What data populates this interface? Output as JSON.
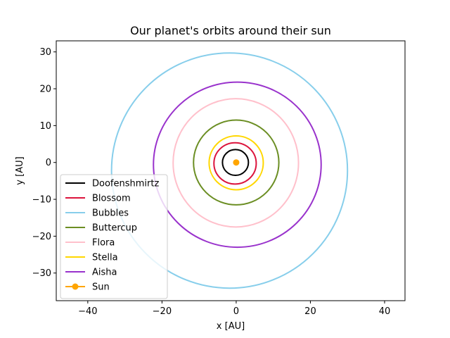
{
  "chart_data": {
    "type": "line",
    "title": "Our planet's orbits around their sun",
    "xlabel": "x [AU]",
    "ylabel": "y [AU]",
    "xlim": [
      -48.5,
      45.5
    ],
    "ylim": [
      -37.5,
      33.0
    ],
    "xticks": [
      -40,
      -20,
      0,
      20,
      40
    ],
    "xtick_labels": [
      "−40",
      "−20",
      "0",
      "20",
      "40"
    ],
    "yticks": [
      -30,
      -20,
      -10,
      0,
      10,
      20,
      30
    ],
    "ytick_labels": [
      "−30",
      "−20",
      "−10",
      "0",
      "10",
      "20",
      "30"
    ],
    "grid": false,
    "legend_placement": "lower-left",
    "series": [
      {
        "name": "Doofenshmirtz",
        "color": "#000000",
        "a": 3.5,
        "b": 3.5,
        "center": [
          -0.2,
          0.0
        ]
      },
      {
        "name": "Blossom",
        "color": "#dc143c",
        "a": 5.7,
        "b": 5.6,
        "center": [
          -0.3,
          -0.25
        ]
      },
      {
        "name": "Bubbles",
        "color": "#87ceeb",
        "a": 31.8,
        "b": 31.9,
        "center": [
          -1.8,
          -2.2
        ]
      },
      {
        "name": "Buttercup",
        "color": "#6b8e23",
        "a": 11.5,
        "b": 11.5,
        "center": [
          0.0,
          0.0
        ]
      },
      {
        "name": "Flora",
        "color": "#ffc0cb",
        "a": 16.9,
        "b": 17.4,
        "center": [
          -0.1,
          -0.1
        ]
      },
      {
        "name": "Stella",
        "color": "#ffd700",
        "a": 7.3,
        "b": 7.3,
        "center": [
          0.0,
          -0.1
        ]
      },
      {
        "name": "Aisha",
        "color": "#9932cc",
        "a": 22.6,
        "b": 22.4,
        "center": [
          0.3,
          -0.6
        ]
      },
      {
        "name": "Sun",
        "color": "#ffa500",
        "marker": "circle",
        "x": [
          0
        ],
        "y": [
          0
        ]
      }
    ]
  }
}
